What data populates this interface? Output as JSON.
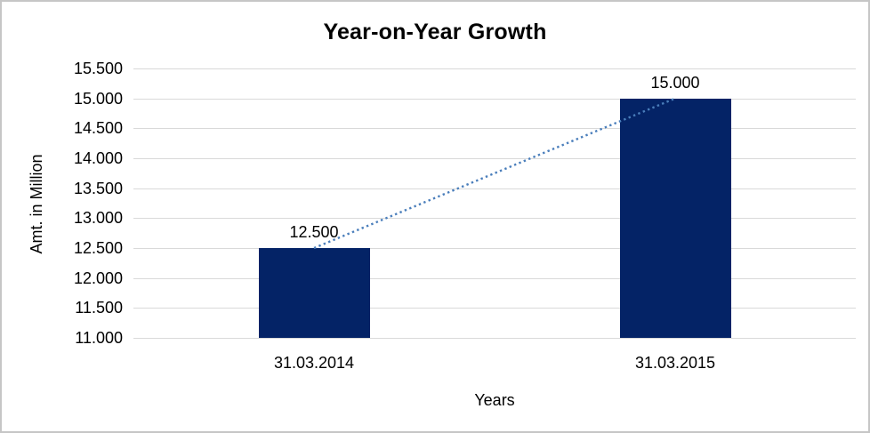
{
  "chart_data": {
    "type": "bar",
    "title": "Year-on-Year Growth",
    "xlabel": "Years",
    "ylabel": "Amt. in Million",
    "categories": [
      "31.03.2014",
      "31.03.2015"
    ],
    "values": [
      12.5,
      15.0
    ],
    "value_labels": [
      "12.500",
      "15.000"
    ],
    "ylim": [
      11.0,
      15.5
    ],
    "yticks": [
      15.5,
      15.0,
      14.5,
      14.0,
      13.5,
      13.0,
      12.5,
      12.0,
      11.5,
      11.0
    ],
    "ytick_labels": [
      "15.500",
      "15.000",
      "14.500",
      "14.000",
      "13.500",
      "13.000",
      "12.500",
      "12.000",
      "11.500",
      "11.000"
    ],
    "grid": true,
    "legend": "none",
    "trendline": {
      "type": "linear",
      "style": "dotted",
      "from_value": 12.5,
      "to_value": 15.0
    },
    "colors": {
      "bar": "#042366",
      "trendline": "#4A7EBB",
      "gridline": "#D9D9D9",
      "text": "#000000",
      "border": "#C6C6C6",
      "background": "#FFFFFF"
    }
  }
}
